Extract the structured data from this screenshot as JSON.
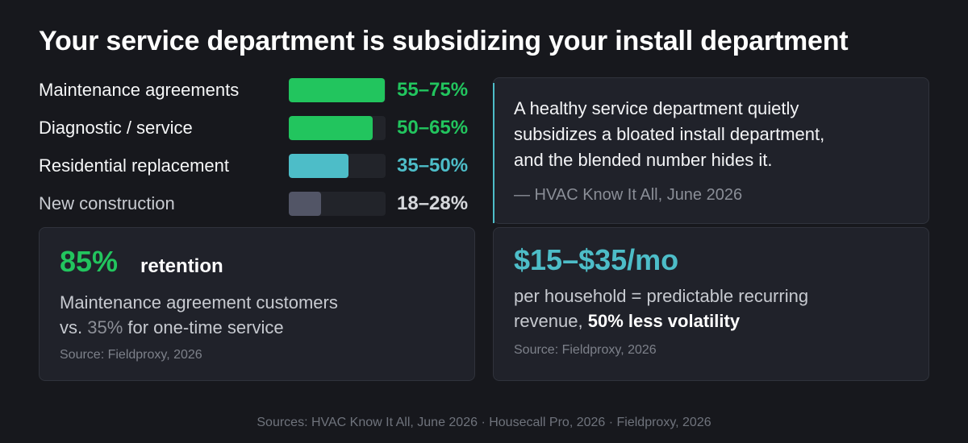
{
  "title": "Your service department is subsidizing your install department",
  "margins": [
    {
      "label": "Maintenance agreements",
      "range": "55–75%",
      "fill_fraction": 0.99,
      "color": "#22c55e",
      "range_color": "#22c55e",
      "label_dim": false
    },
    {
      "label": "Diagnostic / service",
      "range": "50–65%",
      "fill_fraction": 0.87,
      "color": "#22c55e",
      "range_color": "#22c55e",
      "label_dim": false
    },
    {
      "label": "Residential replacement",
      "range": "35–50%",
      "fill_fraction": 0.62,
      "color": "#4dbdc8",
      "range_color": "#4dbdc8",
      "label_dim": false
    },
    {
      "label": "New construction",
      "range": "18–28%",
      "fill_fraction": 0.33,
      "color": "#525566",
      "range_color": "#d6d8dc",
      "label_dim": true
    }
  ],
  "quote": {
    "lines": [
      "A healthy service department quietly",
      "subsidizes a bloated install department,",
      "and the blended number hides it."
    ],
    "attribution": "— HVAC Know It All, June 2026",
    "accent_color": "#4dbdc8"
  },
  "retention_card": {
    "value": "85%",
    "value_color": "#22c55e",
    "suffix": "retention",
    "line1": "Maintenance agreement customers",
    "line2_pre": "vs. ",
    "line2_highlight": "35%",
    "line2_post": " for one-time service",
    "source": "Source: Fieldproxy, 2026"
  },
  "revenue_card": {
    "value": "$15–$35/mo",
    "value_color": "#4dbdc8",
    "line1": "per household = predictable recurring",
    "line2_pre": "revenue, ",
    "line2_strong": "50% less volatility",
    "source": "Source: Fieldproxy, 2026"
  },
  "footer": "Sources: HVAC Know It All, June 2026 · Housecall Pro, 2026 · Fieldproxy, 2026"
}
